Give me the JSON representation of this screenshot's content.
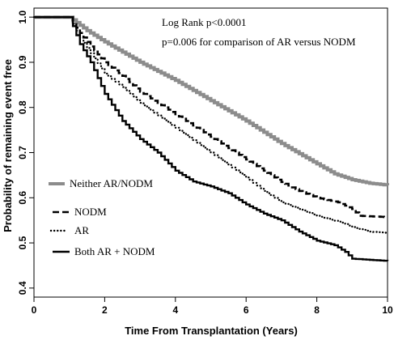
{
  "chart_data": {
    "type": "line",
    "title": "",
    "xlabel": "Time From Transplantation (Years)",
    "ylabel": "Probability of remaining event free",
    "xlim": [
      0,
      10
    ],
    "ylim": [
      0.38,
      1.02
    ],
    "xticks": [
      0,
      2,
      4,
      6,
      8,
      10
    ],
    "yticks": [
      1.0,
      0.9,
      0.8,
      0.7,
      0.6,
      0.5,
      0.4
    ],
    "ytick_labels": [
      "1.0",
      "0.9",
      "0.8",
      "0.7",
      "0.6",
      "0.5",
      "0.4"
    ],
    "grid": false,
    "legend_position": "left",
    "annotations": [
      "Log Rank p<0.0001",
      "p=0.006 for comparison of AR versus NODM"
    ],
    "series": [
      {
        "name": "Neither AR/NODM",
        "style": "solid-thick",
        "color": "#8c8c8c",
        "points": [
          [
            0,
            1.0
          ],
          [
            1.0,
            1.0
          ],
          [
            1.5,
            0.97
          ],
          [
            2,
            0.945
          ],
          [
            3,
            0.9
          ],
          [
            4,
            0.86
          ],
          [
            5,
            0.815
          ],
          [
            6,
            0.77
          ],
          [
            7,
            0.72
          ],
          [
            8,
            0.675
          ],
          [
            8.5,
            0.653
          ],
          [
            9,
            0.64
          ],
          [
            9.5,
            0.632
          ],
          [
            10,
            0.628
          ]
        ]
      },
      {
        "name": "NODM",
        "style": "dashed",
        "color": "#000000",
        "points": [
          [
            0,
            1.0
          ],
          [
            1.0,
            1.0
          ],
          [
            1.3,
            0.965
          ],
          [
            1.6,
            0.935
          ],
          [
            2,
            0.9
          ],
          [
            2.5,
            0.87
          ],
          [
            3,
            0.835
          ],
          [
            4,
            0.785
          ],
          [
            5,
            0.735
          ],
          [
            6,
            0.685
          ],
          [
            7,
            0.635
          ],
          [
            7.5,
            0.615
          ],
          [
            8,
            0.6
          ],
          [
            8.6,
            0.59
          ],
          [
            9,
            0.575
          ],
          [
            9.2,
            0.56
          ],
          [
            10,
            0.557
          ]
        ]
      },
      {
        "name": "AR",
        "style": "dotted",
        "color": "#000000",
        "points": [
          [
            0,
            1.0
          ],
          [
            1.0,
            1.0
          ],
          [
            1.3,
            0.955
          ],
          [
            1.6,
            0.92
          ],
          [
            2,
            0.875
          ],
          [
            2.5,
            0.845
          ],
          [
            3,
            0.81
          ],
          [
            4,
            0.755
          ],
          [
            5,
            0.7
          ],
          [
            6,
            0.645
          ],
          [
            6.5,
            0.615
          ],
          [
            7,
            0.59
          ],
          [
            8,
            0.56
          ],
          [
            8.7,
            0.545
          ],
          [
            9,
            0.535
          ],
          [
            9.5,
            0.525
          ],
          [
            10,
            0.522
          ]
        ]
      },
      {
        "name": "Both AR + NODM",
        "style": "solid",
        "color": "#000000",
        "points": [
          [
            0,
            1.0
          ],
          [
            1.0,
            1.0
          ],
          [
            1.3,
            0.94
          ],
          [
            1.6,
            0.9
          ],
          [
            2,
            0.83
          ],
          [
            2.5,
            0.77
          ],
          [
            3,
            0.73
          ],
          [
            3.5,
            0.7
          ],
          [
            4,
            0.66
          ],
          [
            4.5,
            0.636
          ],
          [
            5,
            0.625
          ],
          [
            5.5,
            0.61
          ],
          [
            6,
            0.585
          ],
          [
            6.5,
            0.565
          ],
          [
            7,
            0.55
          ],
          [
            7.5,
            0.525
          ],
          [
            8,
            0.505
          ],
          [
            8.5,
            0.495
          ],
          [
            8.8,
            0.48
          ],
          [
            9,
            0.465
          ],
          [
            10,
            0.46
          ]
        ]
      }
    ]
  }
}
